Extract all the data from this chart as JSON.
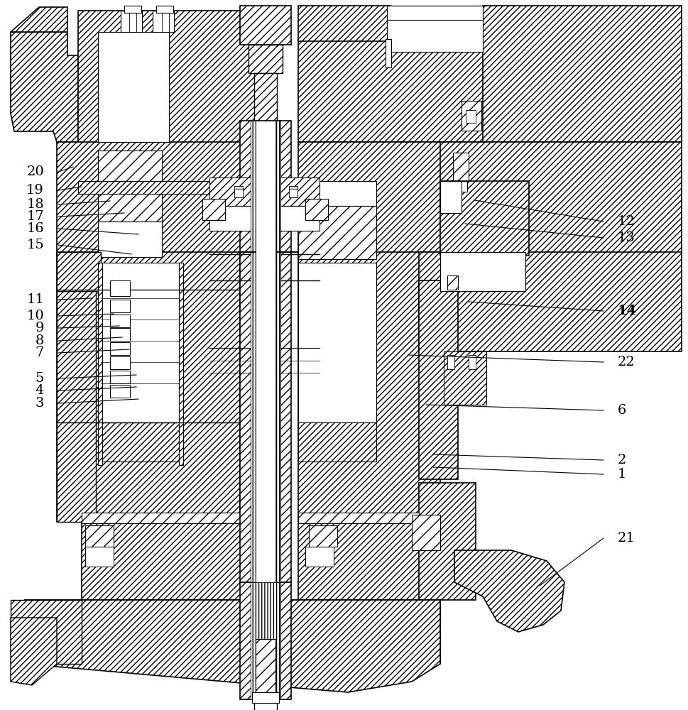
{
  "bg_color": "#ffffff",
  "lc": "#000000",
  "figsize": [
    9.69,
    10.0
  ],
  "dpi": 100,
  "labels_left": [
    [
      "20",
      62,
      242,
      103,
      235
    ],
    [
      "19",
      62,
      268,
      115,
      263
    ],
    [
      "18",
      62,
      288,
      155,
      283
    ],
    [
      "17",
      62,
      305,
      175,
      300
    ],
    [
      "16",
      62,
      322,
      195,
      330
    ],
    [
      "15",
      62,
      345,
      185,
      358
    ],
    [
      "11",
      62,
      422,
      130,
      420
    ],
    [
      "10",
      62,
      445,
      160,
      442
    ],
    [
      "9",
      62,
      462,
      168,
      459
    ],
    [
      "8",
      62,
      480,
      172,
      475
    ],
    [
      "7",
      62,
      497,
      182,
      492
    ],
    [
      "5",
      62,
      533,
      192,
      528
    ],
    [
      "4",
      62,
      550,
      192,
      545
    ],
    [
      "3",
      62,
      568,
      195,
      562
    ]
  ],
  "labels_right": [
    [
      "12",
      870,
      312,
      668,
      282
    ],
    [
      "13",
      870,
      335,
      655,
      315
    ],
    [
      "14",
      870,
      438,
      660,
      425
    ],
    [
      "22",
      870,
      510,
      575,
      500
    ],
    [
      "6",
      870,
      578,
      600,
      570
    ],
    [
      "2",
      870,
      648,
      610,
      640
    ],
    [
      "1",
      870,
      668,
      610,
      658
    ],
    [
      "21",
      870,
      758,
      760,
      825
    ]
  ],
  "bold_labels": [
    "14"
  ]
}
